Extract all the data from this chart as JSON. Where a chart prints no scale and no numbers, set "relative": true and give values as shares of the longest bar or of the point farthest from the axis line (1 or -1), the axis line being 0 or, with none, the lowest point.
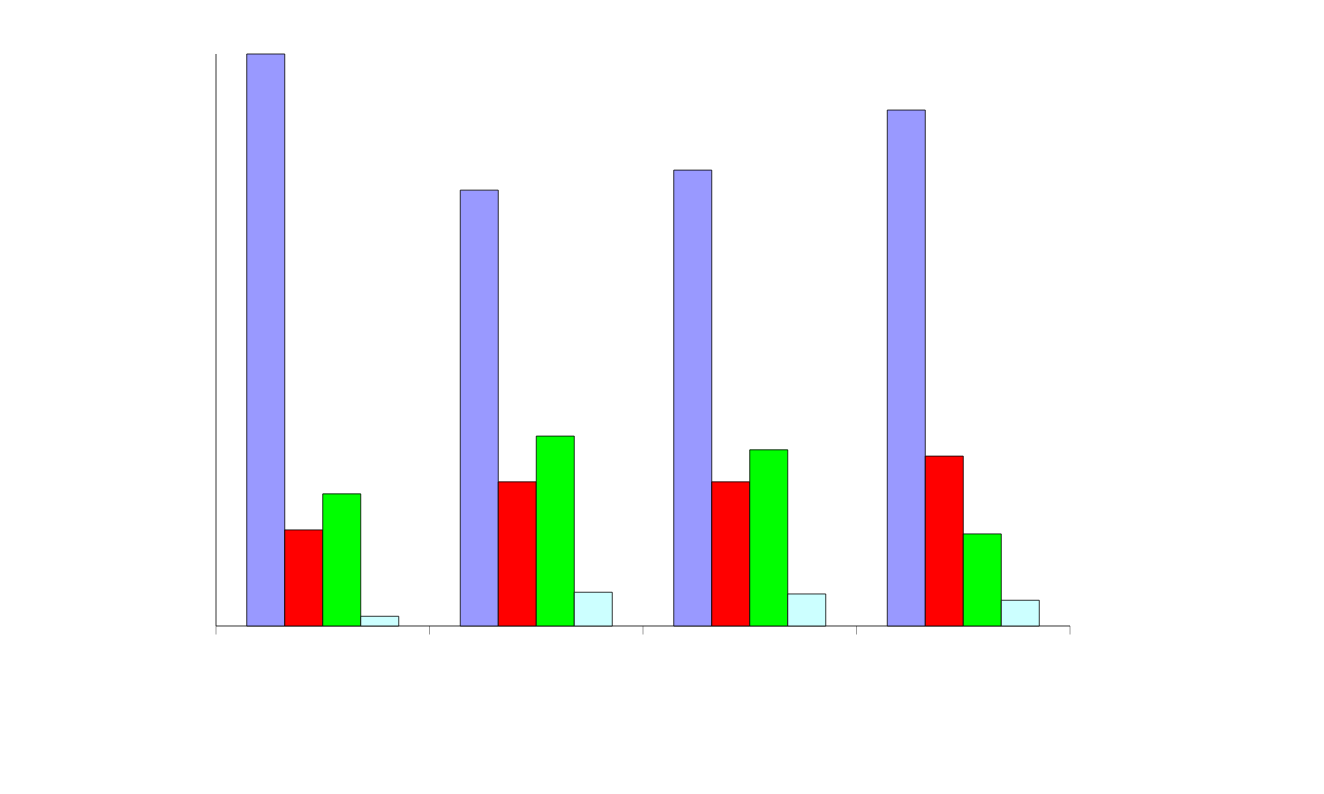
{
  "chart_data": {
    "type": "bar",
    "relative": true,
    "categories": [
      null,
      null,
      null,
      null
    ],
    "series": [
      {
        "color": "#9999ff",
        "values": [
          1,
          0.762,
          0.797,
          0.902
        ]
      },
      {
        "color": "#ff0000",
        "values": [
          0.168,
          0.252,
          0.252,
          0.297
        ]
      },
      {
        "color": "#00ff00",
        "values": [
          0.231,
          0.332,
          0.308,
          0.161
        ]
      },
      {
        "color": "#ccffff",
        "values": [
          0.017,
          0.059,
          0.056,
          0.045
        ]
      }
    ]
  }
}
